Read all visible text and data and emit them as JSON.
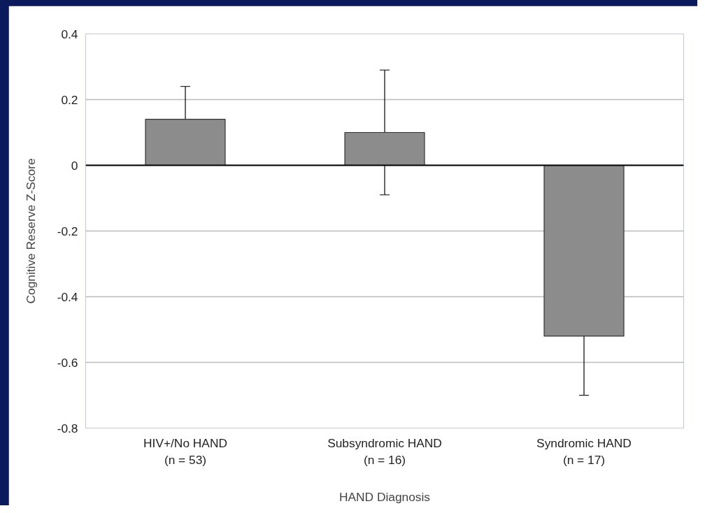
{
  "chart_data": {
    "type": "bar",
    "xlabel": "HAND Diagnosis",
    "ylabel": "Cognitive Reserve Z-Score",
    "categories": [
      "HIV+/No HAND\n(n = 53)",
      "Subsyndromic HAND\n(n = 16)",
      "Syndromic HAND\n(n = 17)"
    ],
    "values": [
      0.14,
      0.1,
      -0.52
    ],
    "errors": [
      0.1,
      0.19,
      0.18
    ],
    "color": "#8c8c8c",
    "ylim": [
      -0.8,
      0.4
    ],
    "yticks": [
      {
        "value": -0.8,
        "label": "-0.8"
      },
      {
        "value": -0.6,
        "label": "-0.6"
      },
      {
        "value": -0.4,
        "label": "-0.4"
      },
      {
        "value": -0.2,
        "label": "-0.2"
      },
      {
        "value": 0,
        "label": "0"
      },
      {
        "value": 0.2,
        "label": "0.2"
      },
      {
        "value": 0.4,
        "label": "0.4"
      }
    ],
    "grid": "y"
  }
}
